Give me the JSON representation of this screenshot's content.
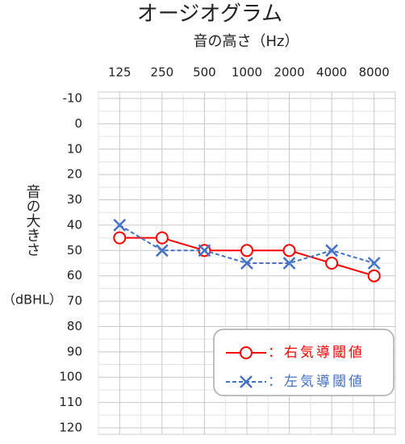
{
  "chart_data": {
    "type": "audiogram",
    "title": "オージオグラム",
    "x_label": "音の高さ（Hz）",
    "y_label": "音の大きさ",
    "y_unit": "（dBHL）",
    "categories": [
      "125",
      "250",
      "500",
      "1000",
      "2000",
      "4000",
      "8000"
    ],
    "series": [
      {
        "name": "：右気導閾値",
        "color": "#ff0000",
        "marker": "circle",
        "dashed": false,
        "values": [
          45,
          45,
          50,
          50,
          50,
          55,
          60
        ]
      },
      {
        "name": "：左気導閾値",
        "color": "#4472c4",
        "marker": "x",
        "dashed": true,
        "values": [
          40,
          50,
          50,
          55,
          55,
          50,
          55
        ]
      }
    ],
    "ylim": [
      -10,
      120
    ],
    "y_inverted": true,
    "yticks": [
      -10,
      0,
      10,
      20,
      30,
      40,
      50,
      60,
      70,
      80,
      90,
      100,
      110,
      120
    ],
    "grid": true
  }
}
